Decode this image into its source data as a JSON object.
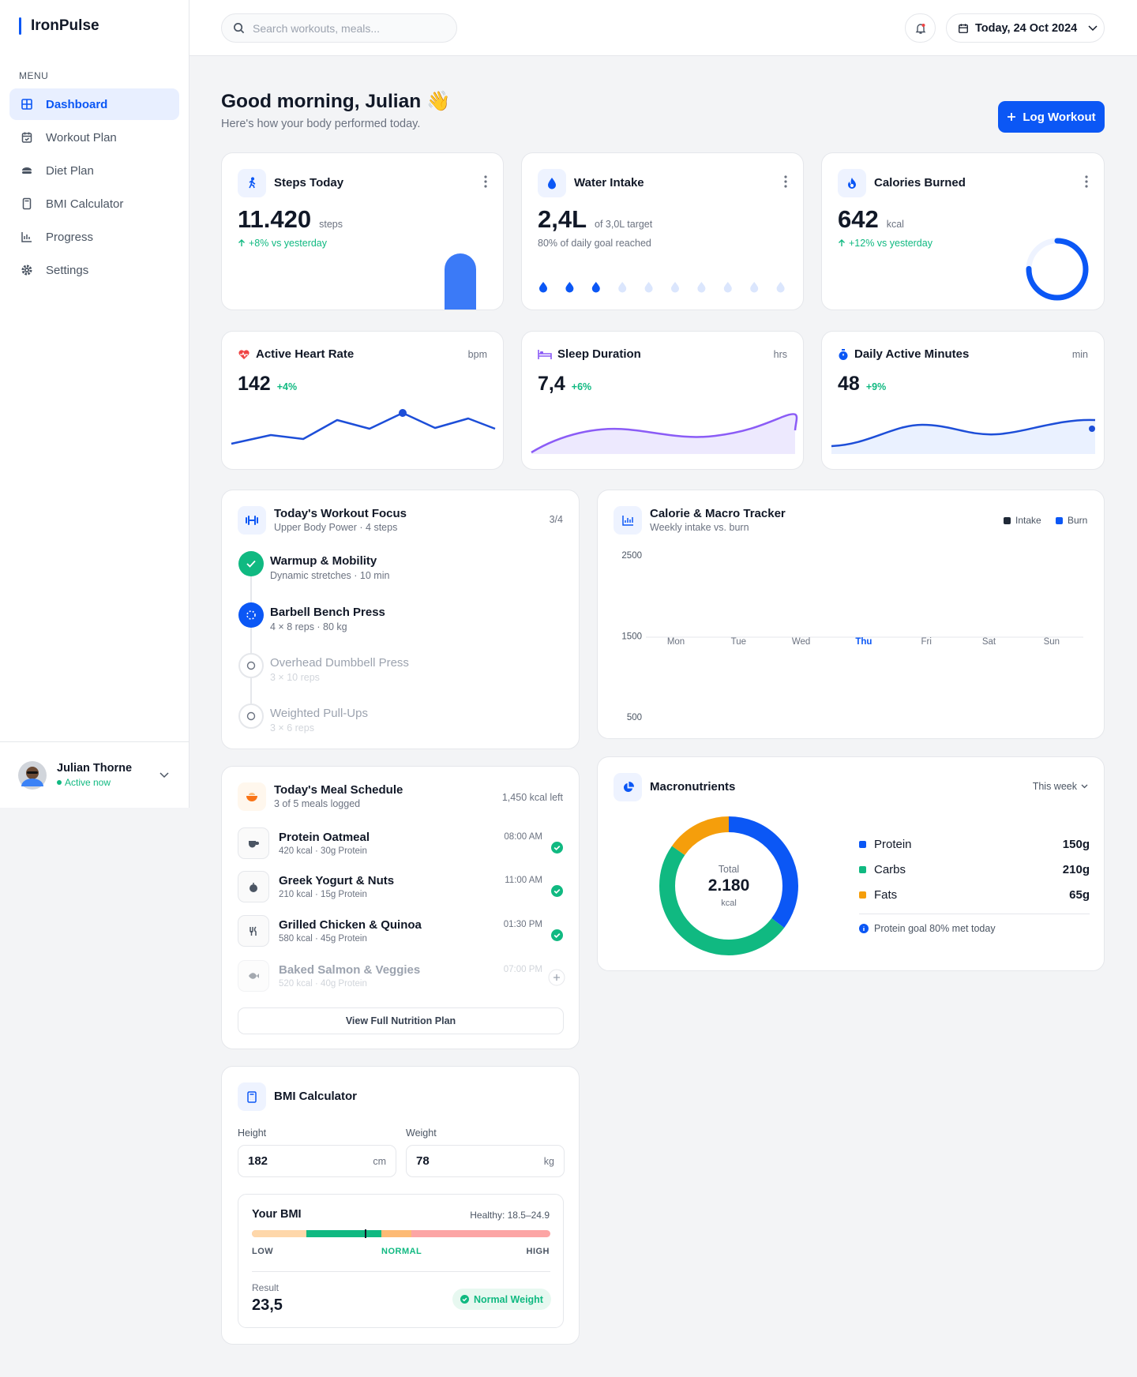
{
  "sidebar": {
    "brand": "IronPulse",
    "menu_label": "MENU",
    "menu": [
      "Dashboard",
      "Workout Plan",
      "Diet Plan",
      "BMI Calculator",
      "Progress",
      "Settings"
    ],
    "user": {
      "name": "Julian Thorne",
      "status": "Active now"
    }
  },
  "header": {
    "search_placeholder": "Search workouts, meals...",
    "date": "Today, 24 Oct 2024"
  },
  "greeting": {
    "title": "Good morning, Julian 👋",
    "subtitle": "Here's how your body performed today.",
    "action": "Log Workout"
  },
  "stats": [
    {
      "title": "Steps Today",
      "value": "11.420",
      "unit": "steps",
      "note": "+8% vs yesterday"
    },
    {
      "title": "Water Intake",
      "value": "2,4L",
      "unit": "of 3,0L target",
      "note": "80% of daily goal reached"
    },
    {
      "title": "Calories Burned",
      "value": "642",
      "unit": "kcal",
      "note": "+12% vs yesterday"
    }
  ],
  "vitals": [
    {
      "title": "Active Heart Rate",
      "unit": "bpm",
      "value": "142",
      "change": "+4%"
    },
    {
      "title": "Sleep Duration",
      "unit": "hrs",
      "value": "7,4",
      "change": "+6%"
    },
    {
      "title": "Daily Active Minutes",
      "unit": "min",
      "value": "48",
      "change": "+9%"
    }
  ],
  "workout": {
    "title": "Today's Workout Focus",
    "subtitle": "Upper Body Power · 4 steps",
    "progress": "3/4",
    "steps": [
      {
        "name": "Warmup & Mobility",
        "detail": "Dynamic stretches · 10 min"
      },
      {
        "name": "Barbell Bench Press",
        "detail": "4 × 8 reps · 80 kg"
      },
      {
        "name": "Overhead Dumbbell Press",
        "detail": "3 × 10 reps"
      },
      {
        "name": "Weighted Pull-Ups",
        "detail": "3 × 6 reps"
      }
    ]
  },
  "meals": {
    "title": "Today's Meal Schedule",
    "subtitle": "3 of 5 meals logged",
    "remaining": "1,450 kcal left",
    "items": [
      {
        "name": "Protein Oatmeal",
        "detail": "420 kcal · 30g Protein",
        "time": "08:00 AM"
      },
      {
        "name": "Greek Yogurt & Nuts",
        "detail": "210 kcal · 15g Protein",
        "time": "11:00 AM"
      },
      {
        "name": "Grilled Chicken & Quinoa",
        "detail": "580 kcal · 45g Protein",
        "time": "01:30 PM"
      },
      {
        "name": "Baked Salmon & Veggies",
        "detail": "520 kcal · 40g Protein",
        "time": "07:00 PM"
      }
    ],
    "action": "View Full Nutrition Plan"
  },
  "bmi": {
    "title": "BMI Calculator",
    "height_label": "Height",
    "height": "182",
    "height_unit": "cm",
    "weight_label": "Weight",
    "weight": "78",
    "weight_unit": "kg",
    "result_title": "Your BMI",
    "healthy_range": "Healthy: 18.5–24.9",
    "scale": [
      "LOW",
      "NORMAL",
      "HIGH"
    ],
    "result_label": "Result",
    "result": "23,5",
    "category": "Normal Weight"
  },
  "tracker": {
    "title": "Calorie & Macro Tracker",
    "subtitle": "Weekly intake vs. burn",
    "legend": [
      {
        "name": "Intake",
        "color": "#1f2937"
      },
      {
        "name": "Burn",
        "color": "#0b57f5"
      }
    ],
    "ylim": [
      500,
      2500
    ],
    "yticks": [
      2500,
      1500,
      500
    ],
    "categories": [
      "Mon",
      "Tue",
      "Wed",
      "Thu",
      "Fri",
      "Sat",
      "Sun"
    ],
    "highlight_index": 3
  },
  "macros": {
    "title": "Macronutrients",
    "period": "This week",
    "total_label": "Total",
    "total": "2.180",
    "total_unit": "kcal",
    "items": [
      {
        "name": "Protein",
        "value": 150,
        "label": "150g",
        "color": "#0b57f5"
      },
      {
        "name": "Carbs",
        "value": 210,
        "label": "210g",
        "color": "#10b981"
      },
      {
        "name": "Fats",
        "value": 65,
        "label": "65g",
        "color": "#f59e0b"
      }
    ],
    "note": "Protein goal 80% met today"
  }
}
